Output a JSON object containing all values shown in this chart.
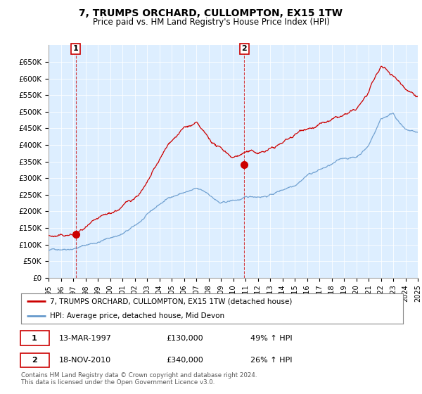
{
  "title": "7, TRUMPS ORCHARD, CULLOMPTON, EX15 1TW",
  "subtitle": "Price paid vs. HM Land Registry's House Price Index (HPI)",
  "legend_line1": "7, TRUMPS ORCHARD, CULLOMPTON, EX15 1TW (detached house)",
  "legend_line2": "HPI: Average price, detached house, Mid Devon",
  "table_rows": [
    {
      "num": "1",
      "date": "13-MAR-1997",
      "price": "£130,000",
      "hpi": "49% ↑ HPI"
    },
    {
      "num": "2",
      "date": "18-NOV-2010",
      "price": "£340,000",
      "hpi": "26% ↑ HPI"
    }
  ],
  "footnote1": "Contains HM Land Registry data © Crown copyright and database right 2024.",
  "footnote2": "This data is licensed under the Open Government Licence v3.0.",
  "hpi_color": "#6699cc",
  "price_color": "#cc0000",
  "marker_color": "#cc0000",
  "annotation_color": "#cc0000",
  "plot_bg": "#ddeeff",
  "ylim": [
    0,
    700000
  ],
  "yticks": [
    0,
    50000,
    100000,
    150000,
    200000,
    250000,
    300000,
    350000,
    400000,
    450000,
    500000,
    550000,
    600000,
    650000
  ],
  "ytick_labels": [
    "£0",
    "£50K",
    "£100K",
    "£150K",
    "£200K",
    "£250K",
    "£300K",
    "£350K",
    "£400K",
    "£450K",
    "£500K",
    "£550K",
    "£600K",
    "£650K"
  ],
  "sale1_x": 1997.2,
  "sale1_y": 130000,
  "sale2_x": 2010.9,
  "sale2_y": 340000,
  "xmin": 1995,
  "xmax": 2025,
  "hpi_base_years": [
    1995,
    1996,
    1997,
    1998,
    1999,
    2000,
    2001,
    2002,
    2003,
    2004,
    2005,
    2006,
    2007,
    2008,
    2009,
    2010,
    2011,
    2012,
    2013,
    2014,
    2015,
    2016,
    2017,
    2018,
    2019,
    2020,
    2021,
    2022,
    2023,
    2024,
    2025
  ],
  "hpi_base_vals": [
    82000,
    88000,
    95000,
    105000,
    115000,
    128000,
    140000,
    160000,
    190000,
    220000,
    245000,
    258000,
    265000,
    248000,
    218000,
    225000,
    230000,
    235000,
    242000,
    258000,
    278000,
    312000,
    328000,
    342000,
    358000,
    362000,
    398000,
    480000,
    500000,
    448000,
    438000
  ],
  "pp_base_years": [
    1995,
    1996,
    1997,
    1998,
    1999,
    2000,
    2001,
    2002,
    2003,
    2004,
    2005,
    2006,
    2007,
    2008,
    2009,
    2010,
    2011,
    2012,
    2013,
    2014,
    2015,
    2016,
    2017,
    2018,
    2019,
    2020,
    2021,
    2022,
    2023,
    2024,
    2025
  ],
  "pp_base_vals": [
    128000,
    126000,
    130000,
    148000,
    162000,
    175000,
    198000,
    228000,
    270000,
    335000,
    395000,
    435000,
    445000,
    392000,
    362000,
    342000,
    362000,
    358000,
    372000,
    392000,
    418000,
    448000,
    462000,
    472000,
    482000,
    492000,
    545000,
    615000,
    592000,
    558000,
    545000
  ]
}
